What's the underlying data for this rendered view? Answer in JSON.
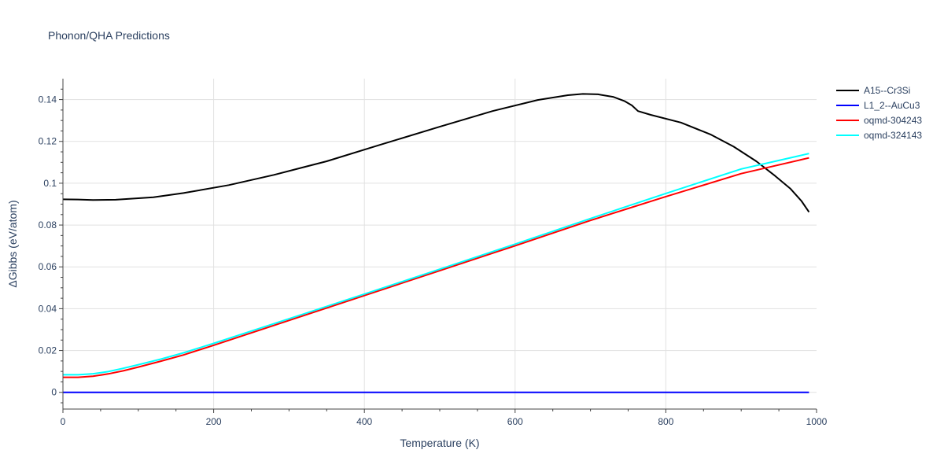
{
  "chart_data": {
    "type": "line",
    "title": "Phonon/QHA Predictions",
    "xlabel": "Temperature (K)",
    "ylabel": "ΔGibbs (eV/atom)",
    "xlim": [
      0,
      1000
    ],
    "ylim": [
      -0.008,
      0.15
    ],
    "xticks": [
      0,
      200,
      400,
      600,
      800,
      1000
    ],
    "xtick_labels": [
      "0",
      "200",
      "400",
      "600",
      "800",
      "1000"
    ],
    "yticks": [
      0,
      0.02,
      0.04,
      0.06,
      0.08,
      0.1,
      0.12,
      0.14
    ],
    "ytick_labels": [
      "0",
      "0.02",
      "0.04",
      "0.06",
      "0.08",
      "0.1",
      "0.12",
      "0.14"
    ],
    "grid": true,
    "legend_position": "top-right",
    "series": [
      {
        "name": "A15--Cr3Si",
        "color": "#000000",
        "x": [
          0,
          20,
          40,
          70,
          120,
          160,
          220,
          280,
          350,
          420,
          500,
          570,
          630,
          670,
          690,
          710,
          730,
          745,
          755,
          763,
          780,
          820,
          860,
          890,
          920,
          945,
          965,
          980,
          990
        ],
        "y": [
          0.0923,
          0.0922,
          0.092,
          0.0921,
          0.0933,
          0.0953,
          0.0991,
          0.104,
          0.1105,
          0.1183,
          0.127,
          0.1345,
          0.1398,
          0.1421,
          0.1427,
          0.1425,
          0.1413,
          0.1393,
          0.1372,
          0.1345,
          0.1327,
          0.129,
          0.1232,
          0.1175,
          0.1105,
          0.1035,
          0.0975,
          0.0915,
          0.0862
        ]
      },
      {
        "name": "L1_2--AuCu3",
        "color": "#0000ff",
        "x": [
          0,
          990
        ],
        "y": [
          0.0,
          0.0
        ]
      },
      {
        "name": "oqmd-304243",
        "color": "#ff0000",
        "x": [
          0,
          20,
          40,
          60,
          80,
          100,
          130,
          160,
          200,
          300,
          400,
          500,
          600,
          700,
          800,
          900,
          990
        ],
        "y": [
          0.0072,
          0.0072,
          0.0077,
          0.0088,
          0.0103,
          0.0121,
          0.0149,
          0.0179,
          0.0225,
          0.0344,
          0.0463,
          0.0582,
          0.0701,
          0.0822,
          0.0936,
          0.1046,
          0.1121
        ]
      },
      {
        "name": "oqmd-324143",
        "color": "#00ffff",
        "x": [
          0,
          20,
          40,
          60,
          80,
          100,
          130,
          160,
          200,
          300,
          400,
          500,
          600,
          700,
          800,
          900,
          990
        ],
        "y": [
          0.0084,
          0.0084,
          0.0089,
          0.0099,
          0.0115,
          0.0132,
          0.0159,
          0.0189,
          0.0234,
          0.0352,
          0.047,
          0.0589,
          0.0709,
          0.0831,
          0.0951,
          0.1068,
          0.1142
        ]
      }
    ]
  }
}
